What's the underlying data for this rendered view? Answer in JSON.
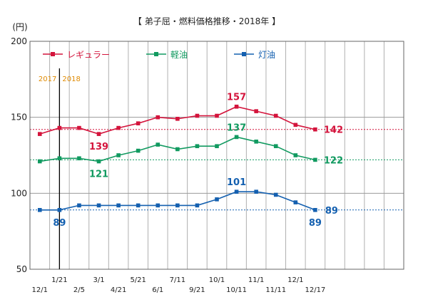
{
  "chart_data": {
    "type": "line",
    "title": "【 弟子屈・燃料価格推移・2018年 】",
    "ylabel": "(円)",
    "ylim": [
      50,
      200
    ],
    "yticks": [
      50,
      100,
      150,
      200
    ],
    "grid": true,
    "legend_position": "top",
    "year_markers": {
      "left": "2017",
      "right": "2018"
    },
    "x_labels_upper": [
      "1/21",
      "3/1",
      "5/21",
      "7/11",
      "10/1",
      "11/1",
      "12/1"
    ],
    "x_labels_lower": [
      "12/1",
      "2/5",
      "4/21",
      "6/1",
      "9/21",
      "10/11",
      "11/11",
      "12/17"
    ],
    "series": [
      {
        "name": "レギュラー",
        "color": "#d4143c",
        "values": [
          139,
          143,
          143,
          139,
          143,
          146,
          150,
          149,
          151,
          151,
          157,
          154,
          151,
          145,
          142
        ],
        "reference": 142,
        "labels": [
          {
            "index": 3,
            "text": "139",
            "pos": "below"
          },
          {
            "index": 10,
            "text": "157",
            "pos": "above"
          },
          {
            "index": 14,
            "text": "142",
            "pos": "right"
          }
        ]
      },
      {
        "name": "軽油",
        "color": "#119a60",
        "values": [
          121,
          123,
          123,
          121,
          125,
          128,
          132,
          129,
          131,
          131,
          137,
          134,
          131,
          125,
          122
        ],
        "reference": 122,
        "labels": [
          {
            "index": 3,
            "text": "121",
            "pos": "below"
          },
          {
            "index": 10,
            "text": "137",
            "pos": "above"
          },
          {
            "index": 14,
            "text": "122",
            "pos": "right"
          }
        ]
      },
      {
        "name": "灯油",
        "color": "#1460b0",
        "values": [
          89,
          89,
          92,
          92,
          92,
          92,
          92,
          92,
          92,
          96,
          101,
          101,
          99,
          94,
          89
        ],
        "reference": 89,
        "labels": [
          {
            "index": 1,
            "text": "89",
            "pos": "below"
          },
          {
            "index": 10,
            "text": "101",
            "pos": "above"
          },
          {
            "index": 14,
            "text": "89",
            "pos": "below"
          },
          {
            "index": 14,
            "text": "89",
            "pos": "farright"
          }
        ]
      }
    ]
  }
}
